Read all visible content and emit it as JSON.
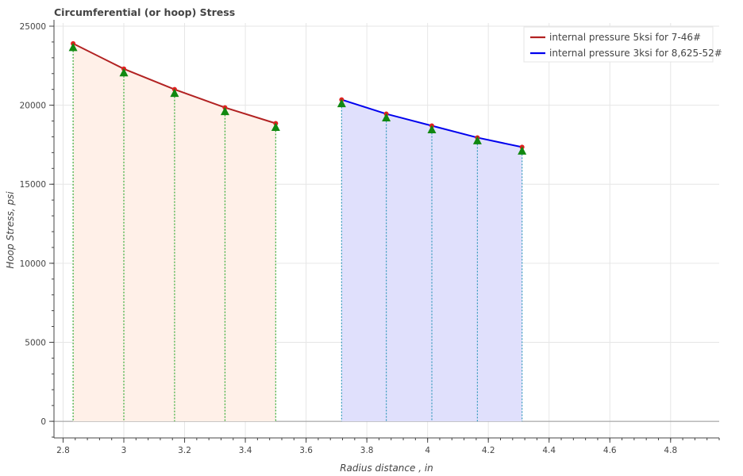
{
  "chart_data": {
    "type": "line",
    "title": "Circumferential (or hoop) Stress",
    "xlabel": "Radius distance , in",
    "ylabel": "Hoop Stress, psi",
    "xlim": [
      2.77,
      4.96
    ],
    "ylim": [
      -1050,
      25200
    ],
    "xticks": [
      2.8,
      3,
      3.2,
      3.4,
      3.6,
      3.8,
      4,
      4.2,
      4.4,
      4.6,
      4.8
    ],
    "yticks": [
      0,
      5000,
      10000,
      15000,
      20000,
      25000
    ],
    "grid": true,
    "legend_position": "top-right",
    "series": [
      {
        "name": "internal pressure 5ksi for 7-46#",
        "color": "#b22222",
        "fill_color": "#fff0e8",
        "x": [
          2.833,
          3.0,
          3.167,
          3.333,
          3.5
        ],
        "y": [
          23900,
          22300,
          21000,
          19850,
          18850
        ],
        "markers_y": [
          23650,
          22050,
          20750,
          19600,
          18600
        ]
      },
      {
        "name": "internal pressure 3ksi for 8,625-52#",
        "color": "#0000ee",
        "fill_color": "#e0e0fc",
        "x": [
          3.717,
          3.864,
          4.014,
          4.164,
          4.311
        ],
        "y": [
          20350,
          19450,
          18700,
          17950,
          17350
        ],
        "markers_y": [
          20100,
          19200,
          18450,
          17750,
          17100
        ]
      }
    ],
    "colors": {
      "point": "#e02020",
      "marker": "#118811",
      "drop_line_1": "#33aa33",
      "drop_line_2": "#3399bb",
      "grid": "#e6e6e6",
      "axis": "#444444"
    }
  }
}
